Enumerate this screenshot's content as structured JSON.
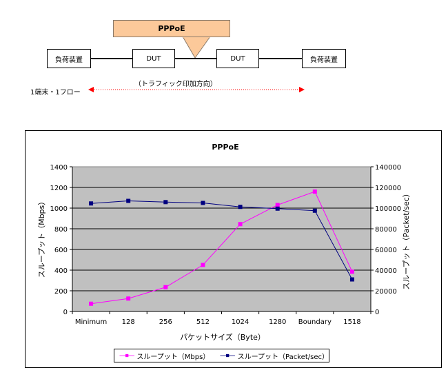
{
  "diagram": {
    "load_device_left": "負荷装置",
    "dut_left": "DUT",
    "dut_right": "DUT",
    "load_device_right": "負荷装置",
    "callout_label": "PPPoE",
    "traffic_direction_label": "（トラフィック印加方向）",
    "flow_label": "1端末・1フロー",
    "arrow_color": "#ff0000"
  },
  "chart_data": {
    "type": "line",
    "title": "PPPoE",
    "xlabel": "パケットサイズ（Byte）",
    "ylabel_left": "スループット（Mbps）",
    "ylabel_right": "スループット（Packet/sec）",
    "categories": [
      "Minimum",
      "128",
      "256",
      "512",
      "1024",
      "1280",
      "Boundary",
      "1518"
    ],
    "ylim_left": [
      0,
      1400
    ],
    "ylim_right": [
      0,
      140000
    ],
    "yticks_left": [
      "0",
      "200",
      "400",
      "600",
      "800",
      "1000",
      "1200",
      "1400"
    ],
    "yticks_right": [
      "0",
      "20000",
      "40000",
      "60000",
      "80000",
      "100000",
      "120000",
      "140000"
    ],
    "grid": true,
    "plot_background": "#c0c0c0",
    "legend_position": "bottom",
    "series": [
      {
        "name": "スループット（Mbps）",
        "axis": "left",
        "color": "#ff00ff",
        "marker": "square",
        "values": [
          75,
          125,
          235,
          450,
          845,
          1030,
          1160,
          385
        ]
      },
      {
        "name": "スループット（Packet/sec）",
        "axis": "right",
        "color": "#000080",
        "marker": "square",
        "values": [
          104500,
          107000,
          105800,
          105000,
          101200,
          99500,
          97500,
          31000
        ]
      }
    ]
  }
}
